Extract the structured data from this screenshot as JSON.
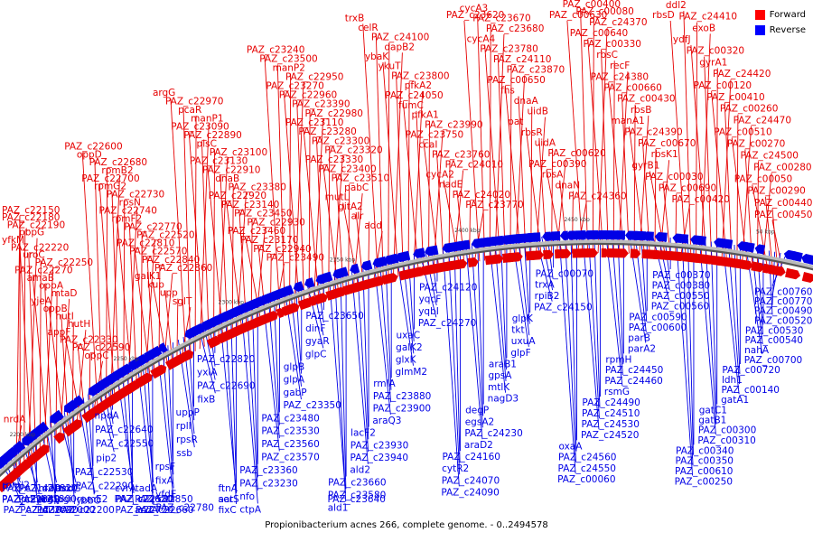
{
  "caption": "Propionibacterium acnes 266, complete genome. - 0..2494578",
  "legend": [
    {
      "label": "Forward",
      "color": "#ff0000"
    },
    {
      "label": "Reverse",
      "color": "#0000ff"
    }
  ],
  "colors": {
    "forward": "#e60000",
    "reverse": "#0000e6",
    "backbone": "#888888"
  },
  "ticks": [
    "2200 kbp",
    "2250 kbp",
    "2300 kbp",
    "2350 kbp",
    "2400 kbp",
    "2450 kbp",
    "50 kbp"
  ],
  "forward_labels": [
    "PAZ_c00450",
    "PAZ_c00440",
    "PAZ_c00290",
    "PAZ_c00050",
    "PAZ_c00280",
    "PAZ_c24500",
    "PAZ_c00270",
    "PAZ_c00510",
    "PAZ_c24470",
    "PAZ_c00260",
    "PAZ_c00410",
    "PAZ_c00120",
    "PAZ_c24420",
    "gyrA1",
    "PAZ_c00320",
    "ydfJ",
    "exoB",
    "PAZ_c24410",
    "ddl2",
    "rbsD",
    "PAZ_c00420",
    "PAZ_c00690",
    "PAZ_c00030",
    "gyrB1",
    "rbsK1",
    "PAZ_c00670",
    "PAZ_c24390",
    "manA1",
    "rbsB",
    "PAZ_c00430",
    "PAZ_c00660",
    "PAZ_c24380",
    "recF",
    "rbsC",
    "PAZ_c00330",
    "PAZ_c00640",
    "PAZ_c24370",
    "PAZ_c00080",
    "PAZ_c00400",
    "PAZ_c00630",
    "PAZ_c24360",
    "dnaN",
    "rbsA",
    "PAZ_c00390",
    "PAZ_c00620",
    "uidA",
    "rbsR",
    "pat",
    "uidB",
    "dnaA",
    "fhs",
    "PAZ_c00650",
    "PAZ_c23870",
    "PAZ_c24110",
    "PAZ_c23780",
    "cycA4",
    "PAZ_c23680",
    "PAZ_c23670",
    "cycA3",
    "PAZ_c23620",
    "PAZ_c23770",
    "PAZ_c24020",
    "nadE",
    "cycA2",
    "PAZ_c24010",
    "PAZ_c23760",
    "ccaI",
    "PAZ_c23750",
    "PAZ_c23990",
    "pfkA1",
    "fumC",
    "PAZ_c24050",
    "pfkA2",
    "PAZ_c23800",
    "ykuT",
    "ybaK",
    "dapB2",
    "PAZ_c24100",
    "celR",
    "trxB",
    "add",
    "alr",
    "gitA2",
    "mutL",
    "pabC",
    "PAZ_c23510",
    "PAZ_c23400",
    "PAZ_c23330",
    "PAZ_c23320",
    "PAZ_c23300",
    "PAZ_c23280",
    "PAZ_c23110",
    "PAZ_c22980",
    "PAZ_c23390",
    "PAZ_c22960",
    "PAZ_c23270",
    "PAZ_c22950",
    "manP2",
    "PAZ_c23500",
    "PAZ_c23240",
    "PAZ_c23490",
    "PAZ_c22940",
    "PAZ_c23170",
    "PAZ_c23460",
    "PAZ_c22930",
    "PAZ_c23450",
    "PAZ_c23140",
    "PAZ_c22920",
    "PAZ_c23380",
    "dnaB",
    "PAZ_c22910",
    "PAZ_c23130",
    "PAZ_c23100",
    "plsC",
    "PAZ_c22890",
    "PAZ_c23090",
    "manP1",
    "pcaR",
    "PAZ_c22970",
    "argG",
    "sglT",
    "upp",
    "kup",
    "galK1",
    "PAZ_c22860",
    "PAZ_c22840",
    "PAZ_c22570",
    "PAZ_c22810",
    "PAZ_c22520",
    "PAZ_c22770",
    "rpmF2",
    "PAZ_c22740",
    "rpsN",
    "PAZ_c22730",
    "rpmG2",
    "PAZ_c22700",
    "rpmB2",
    "PAZ_c22680",
    "oppD",
    "PAZ_c22600",
    "oppC",
    "PAZ_c22590",
    "PAZ_c22330",
    "appF",
    "hutH",
    "hutI",
    "oppB",
    "yjeA",
    "mtaD",
    "oppA",
    "amaB",
    "PAZ_c22270",
    "PAZ_c22250",
    "uroC",
    "PAZ_c22220",
    "yfkM",
    "pbpG",
    "PAZ_c22190",
    "PAZ_c22180",
    "PAZ_c22150",
    "nrdA"
  ],
  "reverse_labels": [
    "PAZ_c00760",
    "PAZ_c00770",
    "PAZ_c00490",
    "PAZ_c00520",
    "PAZ_c00530",
    "PAZ_c00540",
    "nahA",
    "PAZ_c00700",
    "PAZ_c00720",
    "ldh1",
    "PAZ_c00140",
    "gatA1",
    "gatC1",
    "gatB1",
    "PAZ_c00300",
    "PAZ_c00310",
    "PAZ_c00340",
    "PAZ_c00350",
    "PAZ_c00610",
    "PAZ_c00250",
    "PAZ_c00370",
    "PAZ_c00380",
    "PAZ_c00550",
    "PAZ_c00560",
    "PAZ_c00590",
    "PAZ_c00600",
    "parB",
    "parA2",
    "rpmH",
    "PAZ_c24450",
    "PAZ_c24460",
    "rsmG",
    "PAZ_c24490",
    "PAZ_c24510",
    "PAZ_c24530",
    "PAZ_c24520",
    "oxaA",
    "PAZ_c24560",
    "PAZ_c24550",
    "PAZ_c00060",
    "PAZ_c00070",
    "trxA",
    "rpiB2",
    "PAZ_c24150",
    "glpK",
    "tkt",
    "uxuA",
    "glpF",
    "araB1",
    "gpsA",
    "mtlK",
    "nagD3",
    "degP",
    "egsA2",
    "PAZ_c24230",
    "araD2",
    "PAZ_c24160",
    "cytR2",
    "PAZ_c24070",
    "PAZ_c24090",
    "PAZ_c24120",
    "yqcF",
    "yqbI",
    "PAZ_c24270",
    "uxaC",
    "galK2",
    "glxK",
    "glmM2",
    "rmlA",
    "PAZ_c23880",
    "PAZ_c23900",
    "araQ3",
    "lacF2",
    "PAZ_c23930",
    "PAZ_c23940",
    "ald2",
    "PAZ_c23660",
    "PAZ_c23580",
    "ald1",
    "PAZ_c23640",
    "PAZ_c23650",
    "dinF",
    "gyaR",
    "glpC",
    "glpB",
    "glpA",
    "gabP",
    "PAZ_c23350",
    "PAZ_c23480",
    "PAZ_c23530",
    "PAZ_c23560",
    "PAZ_c23570",
    "PAZ_c23360",
    "PAZ_c23230",
    "nfo",
    "ctpA",
    "aat",
    "ftnA",
    "fixC",
    "serS",
    "PAZ_c22820",
    "yxlA",
    "PAZ_c22690",
    "fixB",
    "uppP",
    "rplI",
    "rpsR",
    "ssb",
    "rpsF",
    "fixA",
    "yfdE",
    "PAZ_c22780",
    "acdA",
    "PAZ_c22850",
    "tadA",
    "PAZ_c22660",
    "PAZ_c22620",
    "cvrA",
    "PAZ_c22720",
    "PAZ_c22580",
    "npdA",
    "PAZ_c22640",
    "PAZ_c22550",
    "pip2",
    "PAZ_c22530",
    "PAZ_c22290",
    "ybbO",
    "rpmE2",
    "ask",
    "PAZ_c22200",
    "pgi",
    "nrdG",
    "PAZ_c22000",
    "argS",
    "nrdD",
    "idi",
    "PAZ_c21800",
    "PAZ_c21820",
    "PAZ_c22090",
    "pdhA",
    "rpmJ2",
    "PAZ_c21580",
    "PAZ_c21470",
    "PAZ_c21730",
    "PAZ_c22040"
  ]
}
